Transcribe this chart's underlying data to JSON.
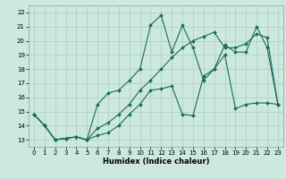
{
  "xlabel": "Humidex (Indice chaleur)",
  "bg_color": "#cce8df",
  "grid_color": "#aacfc5",
  "line_color": "#1a6b5a",
  "xlim": [
    -0.5,
    23.5
  ],
  "ylim": [
    12.5,
    22.5
  ],
  "xticks": [
    0,
    1,
    2,
    3,
    4,
    5,
    6,
    7,
    8,
    9,
    10,
    11,
    12,
    13,
    14,
    15,
    16,
    17,
    18,
    19,
    20,
    21,
    22,
    23
  ],
  "yticks": [
    13,
    14,
    15,
    16,
    17,
    18,
    19,
    20,
    21,
    22
  ],
  "series1_x": [
    0,
    1,
    2,
    3,
    4,
    5,
    6,
    7,
    8,
    9,
    10,
    11,
    12,
    13,
    14,
    15,
    16,
    17,
    18,
    19,
    20,
    21,
    22,
    23
  ],
  "series1_y": [
    14.8,
    14.0,
    13.0,
    13.1,
    13.2,
    13.0,
    13.3,
    13.5,
    14.0,
    14.8,
    15.5,
    16.5,
    16.6,
    16.8,
    14.8,
    14.7,
    17.5,
    18.0,
    19.0,
    15.2,
    15.5,
    15.6,
    15.6,
    15.5
  ],
  "series2_x": [
    0,
    1,
    2,
    3,
    4,
    5,
    6,
    7,
    8,
    9,
    10,
    11,
    12,
    13,
    14,
    15,
    16,
    17,
    18,
    19,
    20,
    21,
    22,
    23
  ],
  "series2_y": [
    14.8,
    14.0,
    13.0,
    13.1,
    13.2,
    13.0,
    15.5,
    16.3,
    16.5,
    17.2,
    18.0,
    21.1,
    21.8,
    19.2,
    21.1,
    19.5,
    17.2,
    18.0,
    19.7,
    19.2,
    19.2,
    21.0,
    19.5,
    15.5
  ],
  "series3_x": [
    0,
    1,
    2,
    3,
    4,
    5,
    6,
    7,
    8,
    9,
    10,
    11,
    12,
    13,
    14,
    15,
    16,
    17,
    18,
    19,
    20,
    21,
    22,
    23
  ],
  "series3_y": [
    14.8,
    14.0,
    13.0,
    13.1,
    13.2,
    13.0,
    13.8,
    14.2,
    14.8,
    15.5,
    16.5,
    17.2,
    18.0,
    18.8,
    19.5,
    20.0,
    20.3,
    20.6,
    19.5,
    19.5,
    19.8,
    20.5,
    20.2,
    15.5
  ]
}
